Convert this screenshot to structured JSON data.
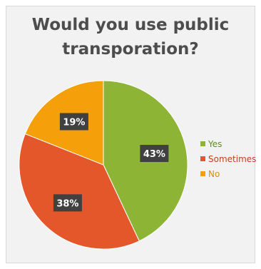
{
  "chart_data": {
    "type": "pie",
    "title": "Would you use public transporation?",
    "title_lines": [
      "Would you use public",
      "transporation?"
    ],
    "categories": [
      "Yes",
      "Sometimes",
      "No"
    ],
    "values": [
      43,
      38,
      19
    ],
    "data_labels": [
      "43%",
      "38%",
      "19%"
    ],
    "colors": [
      "#8db434",
      "#e4572b",
      "#f5a00a"
    ],
    "legend_position": "right",
    "legend_text_colors": [
      "#5f8d1c",
      "#c2421e",
      "#e08e00"
    ]
  }
}
